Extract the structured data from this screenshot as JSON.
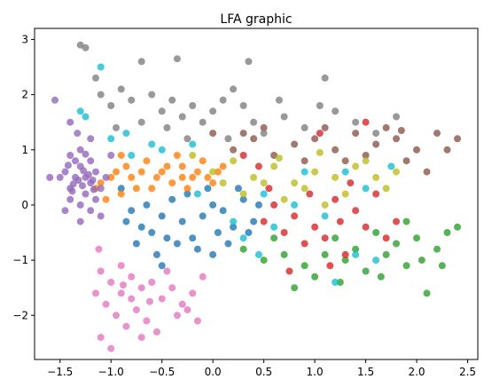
{
  "chart_data": {
    "type": "scatter",
    "title": "LFA graphic",
    "xlabel": "",
    "ylabel": "",
    "xlim": [
      -1.75,
      2.6
    ],
    "ylim": [
      -2.8,
      3.2
    ],
    "xticks": [
      -1.5,
      -1.0,
      -0.5,
      0.0,
      0.5,
      1.0,
      1.5,
      2.0,
      2.5
    ],
    "xtick_labels": [
      "−1.5",
      "−1.0",
      "−0.5",
      "0.0",
      "0.5",
      "1.0",
      "1.5",
      "2.0",
      "2.5"
    ],
    "yticks": [
      -2,
      -1,
      0,
      1,
      2,
      3
    ],
    "ytick_labels": [
      "−2",
      "−1",
      "0",
      "1",
      "2",
      "3"
    ],
    "grid": false,
    "legend": "none",
    "series": [
      {
        "color": "#1f77b4",
        "points": [
          [
            -0.9,
            0.3
          ],
          [
            -0.8,
            -0.1
          ],
          [
            -0.7,
            -0.4
          ],
          [
            -0.6,
            -0.5
          ],
          [
            -0.5,
            -0.2
          ],
          [
            -0.4,
            0.1
          ],
          [
            -0.3,
            -0.3
          ],
          [
            -0.2,
            -0.6
          ],
          [
            -0.1,
            -0.2
          ],
          [
            0.0,
            0.0
          ],
          [
            0.1,
            -0.1
          ],
          [
            0.2,
            -0.4
          ],
          [
            0.3,
            0.1
          ],
          [
            0.4,
            -0.3
          ],
          [
            -0.55,
            -0.9
          ],
          [
            -0.35,
            -0.7
          ],
          [
            -0.15,
            -0.8
          ],
          [
            0.05,
            -0.5
          ],
          [
            -0.65,
            0.0
          ],
          [
            -0.45,
            -0.6
          ],
          [
            -0.25,
            0.2
          ],
          [
            0.15,
            -0.7
          ],
          [
            -0.75,
            -0.7
          ],
          [
            0.35,
            -0.5
          ],
          [
            -0.05,
            0.3
          ],
          [
            0.45,
            0.0
          ],
          [
            -0.85,
            -0.3
          ],
          [
            0.25,
            0.3
          ],
          [
            -0.5,
            -1.1
          ],
          [
            0.0,
            -0.9
          ]
        ]
      },
      {
        "color": "#ff7f0e",
        "points": [
          [
            -1.1,
            0.4
          ],
          [
            -1.0,
            0.5
          ],
          [
            -0.9,
            0.2
          ],
          [
            -0.8,
            0.5
          ],
          [
            -0.7,
            0.6
          ],
          [
            -0.6,
            0.3
          ],
          [
            -0.5,
            0.6
          ],
          [
            -0.4,
            0.4
          ],
          [
            -0.3,
            0.7
          ],
          [
            -0.2,
            0.5
          ],
          [
            -0.1,
            0.8
          ],
          [
            0.0,
            0.4
          ],
          [
            -1.05,
            0.1
          ],
          [
            -0.95,
            0.6
          ],
          [
            -0.85,
            0.7
          ],
          [
            -0.75,
            0.3
          ],
          [
            -0.65,
            0.8
          ],
          [
            -0.55,
            0.5
          ],
          [
            -0.45,
            0.7
          ],
          [
            -0.35,
            0.9
          ],
          [
            -0.25,
            0.3
          ],
          [
            -0.15,
            0.6
          ],
          [
            -0.05,
            0.5
          ],
          [
            0.1,
            0.7
          ],
          [
            -1.15,
            0.3
          ],
          [
            -0.9,
            0.9
          ],
          [
            -0.3,
            0.5
          ],
          [
            0.05,
            0.6
          ]
        ]
      },
      {
        "color": "#2ca02c",
        "points": [
          [
            1.2,
            -0.6
          ],
          [
            1.4,
            -0.8
          ],
          [
            1.6,
            -0.5
          ],
          [
            1.8,
            -0.7
          ],
          [
            2.0,
            -0.6
          ],
          [
            2.2,
            -0.8
          ],
          [
            2.3,
            -0.5
          ],
          [
            1.9,
            -1.1
          ],
          [
            1.7,
            -0.9
          ],
          [
            1.5,
            -1.2
          ],
          [
            1.3,
            -1.0
          ],
          [
            1.1,
            -0.9
          ],
          [
            0.9,
            -1.1
          ],
          [
            0.7,
            -0.9
          ],
          [
            0.5,
            -1.0
          ],
          [
            0.3,
            -0.8
          ],
          [
            2.1,
            -1.6
          ],
          [
            2.4,
            -0.4
          ],
          [
            1.0,
            -1.3
          ],
          [
            0.8,
            -1.5
          ],
          [
            1.9,
            -0.3
          ],
          [
            2.05,
            -1.0
          ],
          [
            1.65,
            -1.3
          ],
          [
            0.6,
            -0.6
          ],
          [
            1.25,
            -1.4
          ],
          [
            2.25,
            -1.1
          ]
        ]
      },
      {
        "color": "#d62728",
        "points": [
          [
            0.6,
            0.0
          ],
          [
            0.8,
            -0.2
          ],
          [
            1.0,
            -0.4
          ],
          [
            1.2,
            0.1
          ],
          [
            1.4,
            -0.1
          ],
          [
            1.6,
            0.2
          ],
          [
            1.8,
            -0.3
          ],
          [
            0.9,
            -0.7
          ],
          [
            1.1,
            -0.6
          ],
          [
            1.3,
            -0.9
          ],
          [
            0.7,
            -0.5
          ],
          [
            0.5,
            -0.3
          ],
          [
            1.5,
            -0.4
          ],
          [
            0.55,
            0.3
          ],
          [
            0.95,
            0.2
          ],
          [
            1.35,
            0.4
          ],
          [
            1.7,
            -0.6
          ],
          [
            0.75,
            -1.2
          ],
          [
            1.15,
            -1.1
          ],
          [
            1.5,
            1.5
          ],
          [
            0.45,
            0.7
          ],
          [
            1.05,
            1.3
          ],
          [
            0.3,
            0.9
          ],
          [
            1.25,
            -0.3
          ]
        ]
      },
      {
        "color": "#9467bd",
        "points": [
          [
            -1.4,
            0.3
          ],
          [
            -1.35,
            0.5
          ],
          [
            -1.3,
            0.7
          ],
          [
            -1.25,
            0.2
          ],
          [
            -1.2,
            0.4
          ],
          [
            -1.15,
            0.6
          ],
          [
            -1.45,
            0.6
          ],
          [
            -1.3,
            0.0
          ],
          [
            -1.2,
            -0.1
          ],
          [
            -1.4,
            0.1
          ],
          [
            -1.25,
            0.5
          ],
          [
            -1.35,
            0.8
          ],
          [
            -1.1,
            0.3
          ],
          [
            -1.3,
            1.0
          ],
          [
            -1.5,
            0.5
          ],
          [
            -1.2,
            0.8
          ],
          [
            -1.15,
            0.1
          ],
          [
            -1.05,
            0.5
          ],
          [
            -1.4,
            0.9
          ],
          [
            -1.28,
            0.35
          ],
          [
            -1.32,
            0.45
          ],
          [
            -1.22,
            0.55
          ],
          [
            -1.38,
            0.25
          ],
          [
            -1.18,
            0.45
          ],
          [
            -1.33,
            1.3
          ],
          [
            -1.55,
            1.9
          ],
          [
            -1.4,
            1.5
          ],
          [
            -1.2,
            1.2
          ],
          [
            -1.0,
            0.9
          ],
          [
            -1.45,
            -0.1
          ],
          [
            -1.1,
            -0.2
          ],
          [
            -1.3,
            -0.3
          ],
          [
            -1.27,
            0.62
          ],
          [
            -1.37,
            0.38
          ],
          [
            -1.17,
            0.28
          ],
          [
            -1.6,
            0.5
          ],
          [
            -1.25,
            0.92
          ],
          [
            -1.42,
            0.72
          ]
        ]
      },
      {
        "color": "#8c564b",
        "points": [
          [
            1.0,
            1.2
          ],
          [
            1.2,
            1.0
          ],
          [
            1.4,
            1.3
          ],
          [
            1.6,
            1.1
          ],
          [
            1.8,
            1.2
          ],
          [
            2.0,
            1.0
          ],
          [
            2.2,
            1.3
          ],
          [
            2.4,
            1.2
          ],
          [
            1.5,
            0.9
          ],
          [
            1.7,
            1.4
          ],
          [
            0.8,
            1.1
          ],
          [
            0.6,
            0.9
          ],
          [
            0.4,
            1.2
          ],
          [
            0.2,
            1.0
          ],
          [
            0.0,
            1.3
          ],
          [
            1.9,
            0.8
          ],
          [
            2.1,
            0.6
          ],
          [
            1.3,
            0.8
          ],
          [
            0.9,
            0.8
          ],
          [
            0.5,
            1.4
          ],
          [
            2.3,
            1.0
          ],
          [
            1.1,
            1.4
          ],
          [
            0.3,
            1.3
          ],
          [
            1.85,
            1.35
          ]
        ]
      },
      {
        "color": "#e377c2",
        "points": [
          [
            -1.1,
            -1.2
          ],
          [
            -1.0,
            -1.4
          ],
          [
            -0.9,
            -1.6
          ],
          [
            -0.8,
            -1.3
          ],
          [
            -0.7,
            -1.5
          ],
          [
            -1.05,
            -1.8
          ],
          [
            -0.95,
            -2.0
          ],
          [
            -0.85,
            -2.2
          ],
          [
            -1.1,
            -2.4
          ],
          [
            -1.0,
            -2.6
          ],
          [
            -0.75,
            -1.9
          ],
          [
            -0.6,
            -1.4
          ],
          [
            -0.5,
            -1.7
          ],
          [
            -0.4,
            -1.5
          ],
          [
            -0.3,
            -1.8
          ],
          [
            -0.2,
            -1.6
          ],
          [
            -0.1,
            -1.3
          ],
          [
            -0.65,
            -2.1
          ],
          [
            -0.55,
            -2.3
          ],
          [
            -0.9,
            -1.1
          ],
          [
            -1.15,
            -1.6
          ],
          [
            -0.8,
            -1.7
          ],
          [
            -0.45,
            -1.2
          ],
          [
            -0.25,
            -1.9
          ],
          [
            -1.12,
            -0.8
          ],
          [
            -0.7,
            -2.4
          ],
          [
            -0.35,
            -2.0
          ],
          [
            -0.15,
            -2.1
          ],
          [
            -0.88,
            -1.45
          ],
          [
            -0.62,
            -1.75
          ]
        ]
      },
      {
        "color": "#7f7f7f",
        "points": [
          [
            -1.3,
            2.9
          ],
          [
            -1.25,
            2.85
          ],
          [
            -0.7,
            2.6
          ],
          [
            -0.35,
            2.65
          ],
          [
            0.35,
            2.6
          ],
          [
            1.1,
            2.3
          ],
          [
            -1.15,
            2.3
          ],
          [
            -1.1,
            2.0
          ],
          [
            -1.0,
            1.8
          ],
          [
            -0.9,
            2.1
          ],
          [
            -0.8,
            1.9
          ],
          [
            -0.6,
            2.0
          ],
          [
            -0.5,
            1.7
          ],
          [
            -0.4,
            1.9
          ],
          [
            -0.3,
            1.6
          ],
          [
            -0.2,
            1.8
          ],
          [
            -0.1,
            1.5
          ],
          [
            0.0,
            1.7
          ],
          [
            0.1,
            1.9
          ],
          [
            0.2,
            2.1
          ],
          [
            0.3,
            1.8
          ],
          [
            0.4,
            1.5
          ],
          [
            0.5,
            1.3
          ],
          [
            0.7,
            1.6
          ],
          [
            0.9,
            1.4
          ],
          [
            1.2,
            1.7
          ],
          [
            1.4,
            1.5
          ],
          [
            1.6,
            1.3
          ],
          [
            1.8,
            1.6
          ],
          [
            -0.7,
            1.5
          ],
          [
            -0.45,
            1.4
          ],
          [
            0.15,
            1.2
          ],
          [
            -0.25,
            1.2
          ],
          [
            0.65,
            1.9
          ],
          [
            -0.95,
            1.4
          ],
          [
            1.05,
            1.8
          ]
        ]
      },
      {
        "color": "#bcbd22",
        "points": [
          [
            0.2,
            0.8
          ],
          [
            0.4,
            0.5
          ],
          [
            0.6,
            0.7
          ],
          [
            0.8,
            0.4
          ],
          [
            1.0,
            0.6
          ],
          [
            1.2,
            0.5
          ],
          [
            1.4,
            0.7
          ],
          [
            1.6,
            0.5
          ],
          [
            1.8,
            0.6
          ],
          [
            0.3,
            0.2
          ],
          [
            0.5,
            0.4
          ],
          [
            0.7,
            0.1
          ],
          [
            0.9,
            0.3
          ],
          [
            1.1,
            0.0
          ],
          [
            1.3,
            0.2
          ],
          [
            -0.2,
            0.9
          ],
          [
            0.0,
            0.6
          ],
          [
            1.5,
            0.8
          ],
          [
            0.1,
            0.4
          ],
          [
            1.7,
            0.3
          ],
          [
            0.65,
            0.85
          ],
          [
            1.05,
            0.95
          ]
        ]
      },
      {
        "color": "#17becf",
        "points": [
          [
            -1.3,
            1.7
          ],
          [
            -1.25,
            1.6
          ],
          [
            -1.1,
            2.5
          ],
          [
            -1.0,
            1.2
          ],
          [
            -0.8,
            0.9
          ],
          [
            -0.6,
            1.1
          ],
          [
            0.2,
            -0.3
          ],
          [
            0.5,
            0.2
          ],
          [
            0.8,
            0.0
          ],
          [
            1.1,
            -0.2
          ],
          [
            1.4,
            -0.9
          ],
          [
            1.6,
            -1.0
          ],
          [
            0.3,
            -0.6
          ],
          [
            0.6,
            -0.4
          ],
          [
            1.3,
            0.6
          ],
          [
            1.5,
            0.3
          ],
          [
            0.9,
            0.6
          ],
          [
            -0.5,
            1.0
          ],
          [
            -0.2,
            1.1
          ],
          [
            -0.85,
            1.3
          ],
          [
            1.75,
            0.7
          ],
          [
            1.2,
            -1.4
          ],
          [
            0.45,
            -0.9
          ],
          [
            -0.15,
            0.2
          ]
        ]
      }
    ]
  }
}
